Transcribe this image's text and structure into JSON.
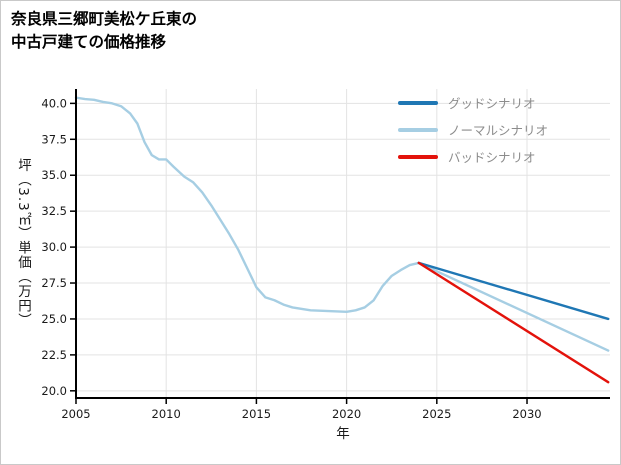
{
  "header": {
    "title_line1": "奈良県三郷町美松ケ丘東の",
    "title_line2": "中古戸建ての価格推移"
  },
  "chart_data": {
    "type": "line",
    "title": "奈良県三郷町美松ケ丘東の中古戸建ての価格推移",
    "xlabel": "年",
    "ylabel": "坪（3.3㎡）単価（万円）",
    "xlim": [
      2005,
      2034.6
    ],
    "ylim": [
      19.5,
      41.0
    ],
    "xticks": [
      2005,
      2010,
      2015,
      2020,
      2025,
      2030
    ],
    "yticks": [
      20.0,
      22.5,
      25.0,
      27.5,
      30.0,
      32.5,
      35.0,
      37.5,
      40.0
    ],
    "grid": true,
    "legend_position": "top-right",
    "colors": {
      "grid": "#e3e3e3",
      "axis": "#000000",
      "tick_label": "#1a1a1a",
      "legend_text": "#8c8c8c"
    },
    "series": [
      {
        "name": "グッドシナリオ",
        "role": "good-scenario",
        "color": "#1f77b4",
        "x": [
          2024,
          2034.5
        ],
        "y": [
          28.9,
          25.0
        ]
      },
      {
        "name": "ノーマルシナリオ",
        "role": "normal-scenario",
        "color": "#a6cee3",
        "x": [
          2005,
          2005.5,
          2006,
          2006.5,
          2007,
          2007.5,
          2008,
          2008.4,
          2008.8,
          2009.2,
          2009.6,
          2010,
          2010.4,
          2011,
          2011.5,
          2012,
          2012.5,
          2013,
          2013.5,
          2014,
          2014.5,
          2015,
          2015.5,
          2016,
          2016.5,
          2017,
          2018,
          2019,
          2020,
          2020.5,
          2021,
          2021.5,
          2022,
          2022.5,
          2023,
          2023.5,
          2024,
          2034.5
        ],
        "y": [
          40.4,
          40.3,
          40.25,
          40.1,
          40.0,
          39.8,
          39.3,
          38.6,
          37.3,
          36.4,
          36.1,
          36.1,
          35.6,
          34.9,
          34.5,
          33.8,
          32.9,
          31.9,
          30.9,
          29.8,
          28.5,
          27.2,
          26.5,
          26.3,
          26.0,
          25.8,
          25.6,
          25.55,
          25.5,
          25.6,
          25.8,
          26.3,
          27.3,
          28.0,
          28.4,
          28.75,
          28.9,
          22.8
        ]
      },
      {
        "name": "バッドシナリオ",
        "role": "bad-scenario",
        "color": "#e3120b",
        "x": [
          2024,
          2034.5
        ],
        "y": [
          28.9,
          20.6
        ]
      }
    ]
  }
}
